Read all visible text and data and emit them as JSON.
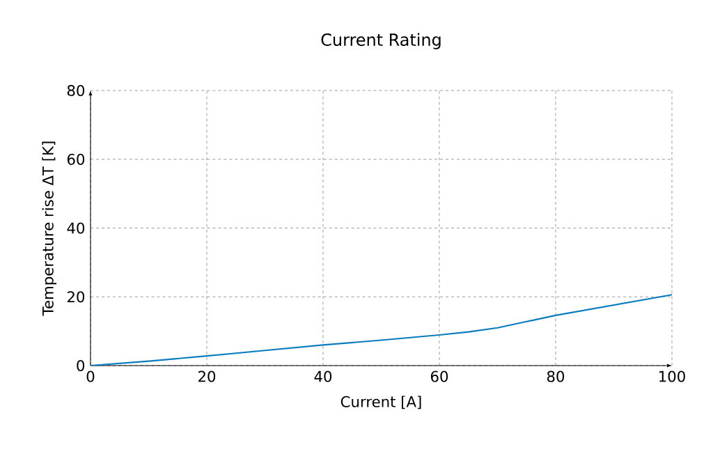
{
  "chart_data": {
    "type": "line",
    "title": "Current Rating",
    "xlabel": "Current [A]",
    "ylabel": "Temperature rise ΔT [K]",
    "x": [
      0,
      10,
      20,
      30,
      40,
      50,
      60,
      65,
      70,
      75,
      80,
      90,
      100
    ],
    "series": [
      {
        "color": "#0a7bbf",
        "values": [
          0,
          1.3,
          2.8,
          4.4,
          6.0,
          7.4,
          8.9,
          9.8,
          11.0,
          12.8,
          14.6,
          17.6,
          20.6
        ]
      }
    ],
    "xlim": [
      0,
      100
    ],
    "ylim": [
      0,
      80
    ],
    "xticks": [
      0,
      20,
      40,
      60,
      80,
      100
    ],
    "yticks": [
      0,
      20,
      40,
      60,
      80
    ],
    "grid": true,
    "marker": "none",
    "line_style": "solid"
  }
}
